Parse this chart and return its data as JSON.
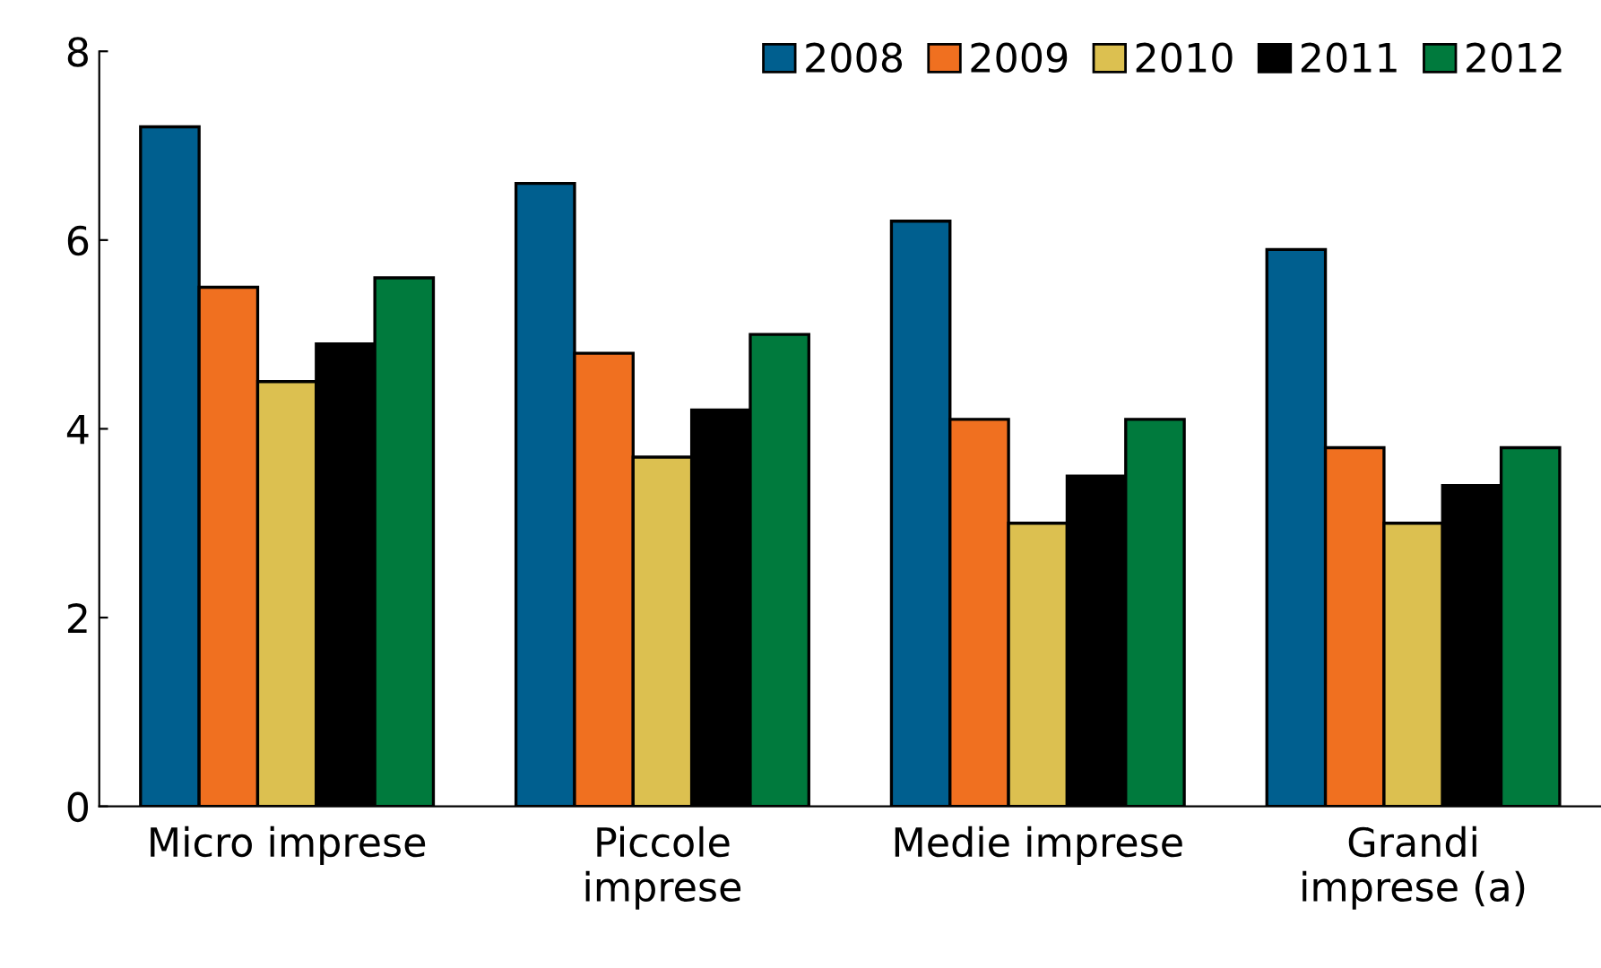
{
  "chart_data": {
    "type": "bar",
    "categories": [
      "Micro imprese",
      "Piccole\nimprese",
      "Medie imprese",
      "Grandi\nimprese (a)"
    ],
    "series": [
      {
        "name": "2008",
        "color": "#005f8f",
        "values": [
          7.2,
          6.6,
          6.2,
          5.9
        ]
      },
      {
        "name": "2009",
        "color": "#f07020",
        "values": [
          5.5,
          4.8,
          4.1,
          3.8
        ]
      },
      {
        "name": "2010",
        "color": "#dcc050",
        "values": [
          4.5,
          3.7,
          3.0,
          3.0
        ]
      },
      {
        "name": "2011",
        "color": "#000000",
        "values": [
          4.9,
          4.2,
          3.5,
          3.4
        ]
      },
      {
        "name": "2012",
        "color": "#007a3d",
        "values": [
          5.6,
          5.0,
          4.1,
          3.8
        ]
      }
    ],
    "ylim": [
      0,
      8
    ],
    "yticks": [
      0,
      2,
      4,
      6,
      8
    ],
    "grid": false,
    "legend": "top right"
  }
}
